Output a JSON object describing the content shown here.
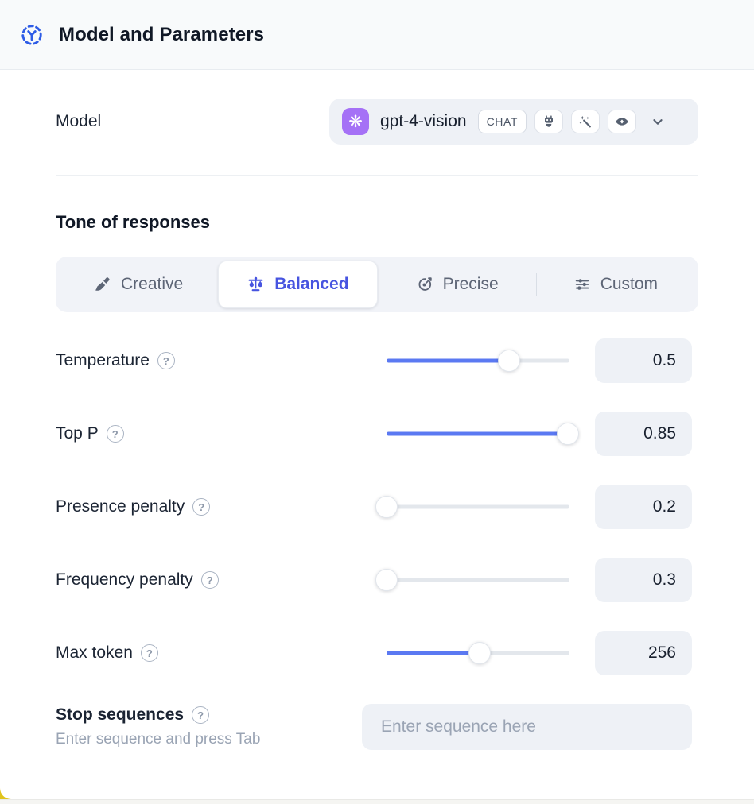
{
  "header": {
    "title": "Model and Parameters"
  },
  "model_row": {
    "label": "Model",
    "model_name": "gpt-4-vision",
    "type_badge": "CHAT",
    "logo_glyph": "❋",
    "capability_icons": [
      "robot-icon",
      "magic-wand-icon",
      "vision-icon"
    ]
  },
  "tone": {
    "heading": "Tone of responses",
    "tabs": [
      {
        "label": "Creative",
        "icon": "paintbrush-icon",
        "selected": false
      },
      {
        "label": "Balanced",
        "icon": "balance-scale-icon",
        "selected": true
      },
      {
        "label": "Precise",
        "icon": "target-icon",
        "selected": false
      },
      {
        "label": "Custom",
        "icon": "sliders-icon",
        "selected": false
      }
    ]
  },
  "parameters": [
    {
      "label": "Temperature",
      "value": "0.5",
      "fill_pct": 67
    },
    {
      "label": "Top P",
      "value": "0.85",
      "fill_pct": 99
    },
    {
      "label": "Presence penalty",
      "value": "0.2",
      "fill_pct": 0
    },
    {
      "label": "Frequency penalty",
      "value": "0.3",
      "fill_pct": 0
    },
    {
      "label": "Max token",
      "value": "256",
      "fill_pct": 51
    }
  ],
  "stop_sequences": {
    "label": "Stop sequences",
    "hint": "Enter sequence and press Tab",
    "placeholder": "Enter sequence here"
  },
  "misc": {
    "help_glyph": "?"
  },
  "colors": {
    "accent": "#4754e0",
    "slider_fill": "#5b79f2",
    "logo_bg": "#a571f6",
    "header_bg": "#f8fafb",
    "field_bg": "#eef1f6",
    "text_dark": "#18202e",
    "text_muted": "#9aa4b4",
    "icon_slate": "#5d6673",
    "corner_accent": "#e0c41d"
  }
}
